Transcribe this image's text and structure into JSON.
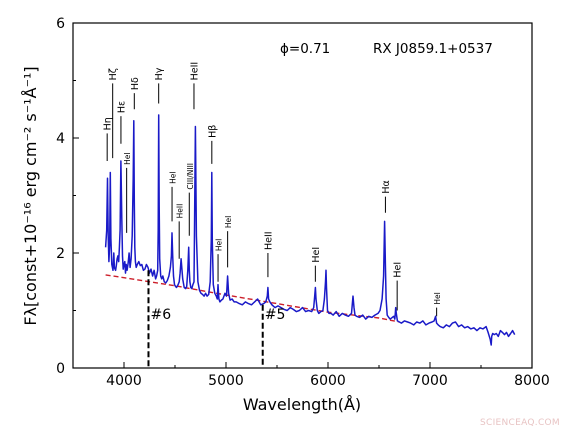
{
  "chart_data": {
    "type": "line",
    "xlabel": "Wavelength(Å)",
    "ylabel": "Fλ[const+10⁻¹⁶ erg cm⁻² s⁻¹Å⁻¹]",
    "xlim": [
      3500,
      8000
    ],
    "ylim": [
      0,
      6
    ],
    "x_ticks": [
      "4000",
      "5000",
      "6000",
      "7000",
      "8000"
    ],
    "y_ticks": [
      "0",
      "2",
      "4",
      "6"
    ],
    "phase_label": "ϕ=0.71",
    "object_label": "RX J0859.1+0537",
    "series": [
      {
        "color": "#1a1ac8",
        "x": [
          3820,
          3830,
          3838,
          3845,
          3852,
          3860,
          3866,
          3872,
          3880,
          3886,
          3892,
          3900,
          3906,
          3912,
          3918,
          3925,
          3932,
          3940,
          3948,
          3955,
          3962,
          3970,
          3978,
          3985,
          3992,
          4000,
          4008,
          4015,
          4022,
          4030,
          4040,
          4050,
          4060,
          4070,
          4080,
          4090,
          4096,
          4101,
          4106,
          4112,
          4120,
          4130,
          4145,
          4160,
          4175,
          4190,
          4205,
          4220,
          4235,
          4250,
          4265,
          4280,
          4295,
          4310,
          4320,
          4330,
          4335,
          4340,
          4345,
          4350,
          4360,
          4370,
          4380,
          4395,
          4410,
          4425,
          4440,
          4455,
          4465,
          4471,
          4477,
          4485,
          4495,
          4505,
          4515,
          4530,
          4541,
          4550,
          4560,
          4575,
          4590,
          4605,
          4615,
          4625,
          4634,
          4640,
          4646,
          4655,
          4665,
          4675,
          4686,
          4690,
          4700,
          4710,
          4725,
          4740,
          4755,
          4770,
          4785,
          4800,
          4815,
          4830,
          4845,
          4856,
          4861,
          4866,
          4875,
          4890,
          4905,
          4915,
          4922,
          4930,
          4940,
          4955,
          4970,
          4990,
          5005,
          5016,
          5025,
          5040,
          5060,
          5080,
          5100,
          5130,
          5160,
          5190,
          5220,
          5250,
          5280,
          5310,
          5340,
          5370,
          5390,
          5405,
          5411,
          5418,
          5430,
          5450,
          5480,
          5510,
          5540,
          5570,
          5600,
          5630,
          5660,
          5690,
          5720,
          5750,
          5780,
          5810,
          5840,
          5860,
          5870,
          5876,
          5882,
          5895,
          5910,
          5930,
          5950,
          5965,
          5975,
          5980,
          5985,
          5995,
          6010,
          6030,
          6050,
          6080,
          6110,
          6140,
          6170,
          6200,
          6230,
          6245,
          6255,
          6265,
          6280,
          6310,
          6340,
          6370,
          6400,
          6430,
          6460,
          6490,
          6510,
          6530,
          6545,
          6555,
          6563,
          6570,
          6580,
          6595,
          6610,
          6630,
          6645,
          6655,
          6660,
          6664,
          6670,
          6680,
          6700,
          6720,
          6750,
          6780,
          6810,
          6840,
          6870,
          6900,
          6930,
          6960,
          6990,
          7020,
          7040,
          7055,
          7065,
          7080,
          7100,
          7130,
          7160,
          7190,
          7220,
          7250,
          7280,
          7310,
          7340,
          7370,
          7400,
          7430,
          7460,
          7490,
          7520,
          7550,
          7570,
          7590,
          7600,
          7605,
          7615,
          7630,
          7650,
          7670,
          7690,
          7710,
          7730,
          7750,
          7770,
          7790,
          7810,
          7830
        ],
        "y": [
          2.1,
          2.4,
          3.3,
          2.3,
          1.85,
          2.15,
          3.4,
          2.25,
          1.8,
          1.75,
          1.7,
          2.0,
          1.75,
          1.72,
          1.7,
          1.78,
          1.9,
          1.95,
          1.85,
          2.1,
          2.4,
          3.6,
          2.6,
          1.95,
          1.72,
          1.8,
          1.85,
          1.65,
          1.8,
          1.7,
          1.82,
          2.0,
          1.75,
          1.9,
          2.3,
          3.3,
          4.3,
          2.9,
          2.1,
          1.85,
          1.75,
          1.8,
          1.85,
          1.78,
          1.8,
          1.7,
          1.72,
          1.8,
          1.75,
          1.65,
          1.72,
          1.6,
          1.7,
          1.55,
          1.6,
          1.7,
          2.4,
          4.4,
          2.8,
          1.9,
          1.6,
          1.55,
          1.6,
          1.5,
          1.48,
          1.52,
          1.6,
          1.75,
          1.95,
          2.35,
          1.95,
          1.6,
          1.45,
          1.42,
          1.4,
          1.45,
          1.5,
          1.65,
          1.9,
          1.55,
          1.4,
          1.38,
          1.42,
          1.7,
          2.1,
          1.7,
          1.5,
          1.4,
          1.38,
          1.45,
          1.5,
          2.2,
          4.2,
          2.3,
          1.5,
          1.35,
          1.3,
          1.28,
          1.25,
          1.3,
          1.25,
          1.28,
          1.5,
          2.25,
          3.4,
          2.2,
          1.45,
          1.3,
          1.25,
          1.2,
          1.45,
          1.2,
          1.15,
          1.18,
          1.2,
          1.3,
          1.25,
          1.6,
          1.3,
          1.18,
          1.2,
          1.15,
          1.15,
          1.12,
          1.1,
          1.15,
          1.12,
          1.1,
          1.15,
          1.2,
          1.1,
          1.12,
          1.15,
          1.25,
          1.4,
          1.2,
          1.15,
          1.1,
          1.05,
          1.08,
          1.05,
          1.02,
          1.0,
          1.05,
          1.02,
          0.98,
          1.0,
          1.05,
          0.98,
          1.0,
          0.98,
          1.05,
          1.25,
          1.4,
          1.2,
          1.0,
          0.95,
          0.98,
          1.0,
          1.2,
          1.5,
          1.7,
          1.4,
          1.0,
          0.95,
          0.95,
          0.92,
          0.98,
          0.9,
          0.95,
          0.92,
          0.9,
          0.95,
          1.25,
          1.05,
          0.92,
          0.9,
          0.88,
          0.92,
          0.85,
          0.9,
          0.88,
          0.92,
          0.95,
          1.0,
          1.2,
          1.6,
          2.55,
          1.8,
          1.2,
          0.92,
          0.88,
          0.85,
          0.88,
          0.9,
          0.85,
          0.95,
          1.05,
          0.95,
          0.82,
          0.8,
          0.78,
          0.82,
          0.8,
          0.78,
          0.75,
          0.8,
          0.78,
          0.82,
          0.75,
          0.78,
          0.8,
          0.82,
          0.9,
          0.78,
          0.75,
          0.72,
          0.7,
          0.75,
          0.72,
          0.78,
          0.8,
          0.72,
          0.75,
          0.7,
          0.72,
          0.68,
          0.7,
          0.65,
          0.7,
          0.68,
          0.72,
          0.62,
          0.5,
          0.4,
          0.55,
          0.6,
          0.58,
          0.6,
          0.55,
          0.65,
          0.62,
          0.58,
          0.62,
          0.55,
          0.6,
          0.65,
          0.58
        ]
      },
      {
        "color": "#cc1f2a",
        "style": "dashed",
        "x": [
          3820,
          4000,
          4500,
          5000,
          5500,
          6000,
          6500,
          6700
        ],
        "y": [
          1.62,
          1.57,
          1.43,
          1.27,
          1.12,
          0.97,
          0.87,
          0.8
        ]
      }
    ],
    "line_labels": [
      {
        "text": "Hη",
        "x": 3835,
        "y_top": 4.08,
        "y_bottom": 3.6
      },
      {
        "text": "Hζ",
        "x": 3889,
        "y_top": 4.95,
        "y_bottom": 3.65
      },
      {
        "text": "Hε",
        "x": 3970,
        "y_top": 4.38,
        "y_bottom": 3.9
      },
      {
        "text": "HeI",
        "x": 4026,
        "y_top": 3.48,
        "y_bottom": 2.35,
        "size": "small"
      },
      {
        "text": "Hδ",
        "x": 4101,
        "y_top": 4.78,
        "y_bottom": 4.5
      },
      {
        "text": "Hγ",
        "x": 4340,
        "y_top": 4.95,
        "y_bottom": 4.6
      },
      {
        "text": "HeII",
        "x": 4686,
        "y_top": 4.95,
        "y_bottom": 4.5
      },
      {
        "text": "Hβ",
        "x": 4861,
        "y_top": 3.95,
        "y_bottom": 3.55
      },
      {
        "text": "HeI",
        "x": 4471,
        "y_top": 3.15,
        "y_bottom": 2.55,
        "size": "small"
      },
      {
        "text": "HeII",
        "x": 4541,
        "y_top": 2.55,
        "y_bottom": 1.9,
        "size": "small"
      },
      {
        "text": "CIII/NIII",
        "x": 4640,
        "y_top": 3.05,
        "y_bottom": 2.3,
        "size": "small"
      },
      {
        "text": "HeI",
        "x": 4922,
        "y_top": 1.98,
        "y_bottom": 1.5,
        "size": "small"
      },
      {
        "text": "HeI",
        "x": 5016,
        "y_top": 2.38,
        "y_bottom": 1.75,
        "size": "small"
      },
      {
        "text": "HeII",
        "x": 5411,
        "y_top": 2.0,
        "y_bottom": 1.58
      },
      {
        "text": "HeI",
        "x": 5876,
        "y_top": 1.78,
        "y_bottom": 1.5
      },
      {
        "text": "Hα",
        "x": 6563,
        "y_top": 2.98,
        "y_bottom": 2.7
      },
      {
        "text": "HeI",
        "x": 6678,
        "y_top": 1.52,
        "y_bottom": 1.0
      },
      {
        "text": "HeI",
        "x": 7065,
        "y_top": 1.05,
        "y_bottom": 0.9,
        "size": "small"
      }
    ],
    "markers": [
      {
        "text": "#6",
        "x": 4240,
        "y_top": 1.7,
        "y_bottom": 0.0
      },
      {
        "text": "#5",
        "x": 5360,
        "y_top": 1.1,
        "y_bottom": 0.0
      }
    ]
  },
  "watermark": "SCIENCEAQ.COM"
}
